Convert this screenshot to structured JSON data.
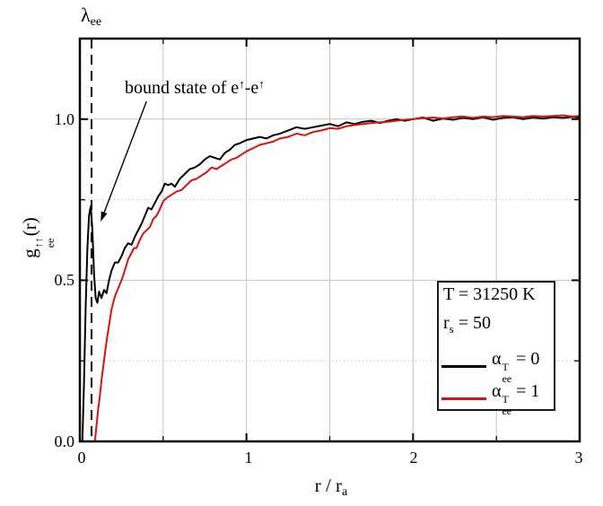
{
  "figure": {
    "background": "#ffffff"
  },
  "colors": {
    "series_black": "#000000",
    "series_red": "#dd1111",
    "grid": "#c4c4c4",
    "axis": "#000000"
  },
  "labels": {
    "lambda": {
      "base": "λ",
      "sub": "ee"
    },
    "annotation": {
      "part1": "bound state of e",
      "sup1": "↑",
      "part2": "-e",
      "sup2": "↑"
    },
    "ylabel": {
      "base": "g",
      "sup": "↑↑",
      "sub": "ee",
      "suffix": "(r)"
    },
    "xlabel": {
      "base": "r / r",
      "sub": "a"
    }
  },
  "axes": {
    "x": {
      "min": 0,
      "max": 3,
      "tick_labels": [
        "0",
        "1",
        "2",
        "3"
      ],
      "major_ticks": [
        0,
        1,
        2,
        3
      ],
      "minor_ticks": [
        0.5,
        1.5,
        2.5
      ]
    },
    "y": {
      "min": 0,
      "max": 1.25,
      "tick_labels": [
        "0.0",
        "0.5",
        "1.0"
      ],
      "major_ticks": [
        0,
        0.5,
        1
      ],
      "minor_ticks": [
        0.25,
        0.75
      ]
    }
  },
  "legend": {
    "line1": {
      "text": "T = 31250 K"
    },
    "line2": {
      "base": "r",
      "sub": "s",
      "rest": "= 50"
    },
    "entries": [
      {
        "symbol": "α",
        "sup": "T",
        "sub": "ee",
        "rest": "= 0",
        "color": "#000000"
      },
      {
        "symbol": "α",
        "sup": "T",
        "sub": "ee",
        "rest": "= 1",
        "color": "#dd1111"
      }
    ]
  },
  "chart_data": {
    "type": "line",
    "title": "",
    "xlabel": "r / r_a",
    "ylabel": "g_ee^↑↑(r)",
    "xlim": [
      0,
      3
    ],
    "ylim": [
      0,
      1.25
    ],
    "grid": true,
    "legend_position": "lower right",
    "vline": {
      "x": 0.07,
      "style": "dashed",
      "color": "#000000",
      "label": "λ_ee"
    },
    "annotation": {
      "text": "bound state of e↑-e↑",
      "arrow_from": [
        0.4,
        1.055
      ],
      "arrow_to": [
        0.125,
        0.682
      ]
    },
    "series": [
      {
        "name": "α_ee^T = 0",
        "color": "#000000",
        "x": [
          0.015,
          0.025,
          0.035,
          0.045,
          0.055,
          0.065,
          0.075,
          0.085,
          0.095,
          0.105,
          0.115,
          0.13,
          0.145,
          0.16,
          0.175,
          0.19,
          0.21,
          0.23,
          0.25,
          0.27,
          0.29,
          0.31,
          0.33,
          0.35,
          0.37,
          0.39,
          0.41,
          0.43,
          0.45,
          0.47,
          0.49,
          0.51,
          0.53,
          0.55,
          0.57,
          0.6,
          0.63,
          0.66,
          0.69,
          0.72,
          0.75,
          0.78,
          0.81,
          0.84,
          0.87,
          0.9,
          0.93,
          0.96,
          1.0,
          1.04,
          1.08,
          1.12,
          1.16,
          1.2,
          1.25,
          1.3,
          1.35,
          1.4,
          1.45,
          1.5,
          1.55,
          1.6,
          1.65,
          1.7,
          1.75,
          1.8,
          1.85,
          1.9,
          1.95,
          2.0,
          2.06,
          2.12,
          2.18,
          2.24,
          2.3,
          2.36,
          2.42,
          2.48,
          2.54,
          2.6,
          2.66,
          2.72,
          2.78,
          2.84,
          2.9,
          2.96,
          3.0
        ],
        "y": [
          0.0,
          0.18,
          0.42,
          0.6,
          0.7,
          0.73,
          0.66,
          0.52,
          0.445,
          0.43,
          0.465,
          0.445,
          0.47,
          0.46,
          0.5,
          0.53,
          0.555,
          0.555,
          0.575,
          0.6,
          0.615,
          0.61,
          0.635,
          0.655,
          0.675,
          0.7,
          0.725,
          0.72,
          0.74,
          0.76,
          0.775,
          0.8,
          0.795,
          0.8,
          0.79,
          0.815,
          0.83,
          0.845,
          0.85,
          0.86,
          0.875,
          0.885,
          0.88,
          0.875,
          0.895,
          0.905,
          0.92,
          0.925,
          0.935,
          0.94,
          0.945,
          0.94,
          0.95,
          0.955,
          0.965,
          0.975,
          0.97,
          0.975,
          0.98,
          0.985,
          0.978,
          0.99,
          0.985,
          0.992,
          0.995,
          0.988,
          0.995,
          1.0,
          0.995,
          1.0,
          1.005,
          0.995,
          1.002,
          0.998,
          1.004,
          1.0,
          1.006,
          0.998,
          1.004,
          1.006,
          1.0,
          1.005,
          1.002,
          1.006,
          1.004,
          1.007,
          1.005
        ]
      },
      {
        "name": "α_ee^T = 1",
        "color": "#dd1111",
        "x": [
          0.0,
          0.05,
          0.09,
          0.1,
          0.11,
          0.12,
          0.13,
          0.145,
          0.16,
          0.175,
          0.19,
          0.21,
          0.23,
          0.25,
          0.27,
          0.29,
          0.31,
          0.325,
          0.34,
          0.36,
          0.38,
          0.4,
          0.42,
          0.44,
          0.46,
          0.48,
          0.5,
          0.52,
          0.55,
          0.58,
          0.61,
          0.64,
          0.67,
          0.7,
          0.73,
          0.76,
          0.79,
          0.82,
          0.85,
          0.88,
          0.91,
          0.94,
          0.97,
          1.0,
          1.04,
          1.08,
          1.12,
          1.16,
          1.2,
          1.25,
          1.3,
          1.35,
          1.4,
          1.45,
          1.5,
          1.55,
          1.6,
          1.65,
          1.7,
          1.75,
          1.8,
          1.85,
          1.9,
          1.95,
          2.0,
          2.06,
          2.12,
          2.18,
          2.24,
          2.3,
          2.36,
          2.42,
          2.48,
          2.54,
          2.6,
          2.66,
          2.72,
          2.78,
          2.84,
          2.9,
          2.96,
          3.0
        ],
        "y": [
          0.0,
          0.0,
          0.0,
          0.05,
          0.1,
          0.14,
          0.19,
          0.25,
          0.31,
          0.36,
          0.41,
          0.45,
          0.475,
          0.5,
          0.53,
          0.565,
          0.585,
          0.6,
          0.6,
          0.625,
          0.645,
          0.655,
          0.665,
          0.69,
          0.7,
          0.72,
          0.745,
          0.755,
          0.765,
          0.775,
          0.78,
          0.795,
          0.81,
          0.815,
          0.825,
          0.835,
          0.85,
          0.845,
          0.855,
          0.865,
          0.875,
          0.88,
          0.89,
          0.9,
          0.91,
          0.92,
          0.925,
          0.93,
          0.94,
          0.945,
          0.955,
          0.95,
          0.96,
          0.965,
          0.972,
          0.97,
          0.978,
          0.982,
          0.985,
          0.988,
          0.99,
          0.992,
          0.995,
          0.998,
          1.0,
          1.003,
          1.005,
          1.002,
          1.006,
          1.008,
          1.004,
          1.008,
          1.006,
          1.01,
          1.008,
          1.006,
          1.01,
          1.008,
          1.01,
          1.012,
          1.008,
          1.01
        ]
      }
    ]
  }
}
